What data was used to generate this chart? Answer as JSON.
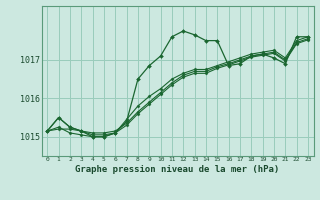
{
  "bg_color": "#cce8e0",
  "grid_color": "#99ccbb",
  "line_color": "#1a6630",
  "marker_color": "#1a6630",
  "xlabel": "Graphe pression niveau de la mer (hPa)",
  "ylim": [
    1014.5,
    1018.4
  ],
  "xlim": [
    -0.5,
    23.5
  ],
  "yticks": [
    1015,
    1016,
    1017
  ],
  "xticks": [
    0,
    1,
    2,
    3,
    4,
    5,
    6,
    7,
    8,
    9,
    10,
    11,
    12,
    13,
    14,
    15,
    16,
    17,
    18,
    19,
    20,
    21,
    22,
    23
  ],
  "series": [
    [
      1015.15,
      1015.5,
      1015.25,
      1015.15,
      1015.05,
      1015.05,
      1015.1,
      1015.45,
      1015.8,
      1016.05,
      1016.25,
      1016.5,
      1016.65,
      1016.75,
      1016.75,
      1016.85,
      1016.95,
      1017.05,
      1017.15,
      1017.2,
      1017.25,
      1017.05,
      1017.5,
      1017.6
    ],
    [
      1015.15,
      1015.2,
      1015.2,
      1015.15,
      1015.1,
      1015.1,
      1015.15,
      1015.35,
      1015.65,
      1015.9,
      1016.15,
      1016.4,
      1016.6,
      1016.7,
      1016.7,
      1016.82,
      1016.9,
      1017.0,
      1017.1,
      1017.15,
      1017.2,
      1017.0,
      1017.45,
      1017.55
    ],
    [
      1015.15,
      1015.25,
      1015.1,
      1015.05,
      1015.0,
      1015.0,
      1015.1,
      1015.3,
      1015.6,
      1015.85,
      1016.1,
      1016.35,
      1016.55,
      1016.65,
      1016.65,
      1016.78,
      1016.87,
      1016.97,
      1017.07,
      1017.12,
      1017.17,
      1016.97,
      1017.42,
      1017.52
    ],
    [
      1015.15,
      1015.5,
      1015.25,
      1015.15,
      1015.0,
      1015.0,
      1015.1,
      1015.4,
      1016.5,
      1016.85,
      1017.1,
      1017.6,
      1017.75,
      1017.65,
      1017.5,
      1017.5,
      1016.85,
      1016.9,
      1017.1,
      1017.15,
      1017.05,
      1016.9,
      1017.6,
      1017.6
    ]
  ]
}
